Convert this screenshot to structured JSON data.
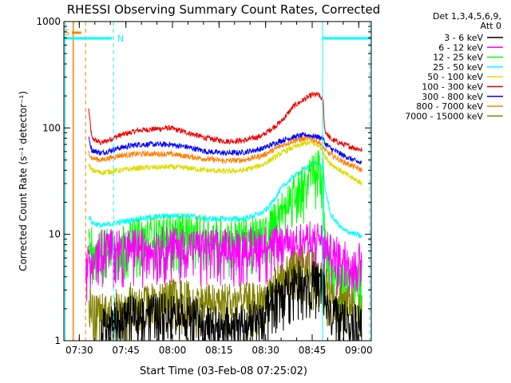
{
  "chart_data": {
    "type": "line",
    "title": "RHESSI Observing Summary Count Rates, Corrected",
    "xlabel": "Start Time (03-Feb-08 07:25:02)",
    "ylabel": "Corrected Count Rate (s⁻¹ detector⁻¹)",
    "yscale": "log",
    "ylim": [
      1,
      1000
    ],
    "xlim_minutes": [
      0,
      99
    ],
    "x_ticks": [
      {
        "label": "07:30",
        "min": 4.97
      },
      {
        "label": "07:45",
        "min": 19.97
      },
      {
        "label": "08:00",
        "min": 34.97
      },
      {
        "label": "08:15",
        "min": 49.97
      },
      {
        "label": "08:30",
        "min": 64.97
      },
      {
        "label": "08:45",
        "min": 79.97
      },
      {
        "label": "09:00",
        "min": 94.97
      }
    ],
    "y_ticks": [
      {
        "label": "1",
        "value": 1
      },
      {
        "label": "10",
        "value": 10
      },
      {
        "label": "100",
        "value": 100
      },
      {
        "label": "1000",
        "value": 1000
      }
    ],
    "legend": {
      "position": "right",
      "header": [
        "Det 1,3,4,5,6,9,",
        "Att 0"
      ],
      "entries": [
        {
          "label": "3 - 6 keV",
          "color": "#000000"
        },
        {
          "label": "6 - 12 keV",
          "color": "#ff00ff"
        },
        {
          "label": "12 - 25 keV",
          "color": "#00ff00"
        },
        {
          "label": "25 - 50 keV",
          "color": "#00ffff"
        },
        {
          "label": "50 - 100 keV",
          "color": "#dddd00"
        },
        {
          "label": "100 - 300 keV",
          "color": "#ee0000"
        },
        {
          "label": "300 - 800 keV",
          "color": "#0000ff"
        },
        {
          "label": "800 - 7000 keV",
          "color": "#ff8000"
        },
        {
          "label": "7000 - 15000 keV",
          "color": "#808000"
        }
      ]
    },
    "flags": {
      "n_label": "N",
      "s_label": "S"
    },
    "series": [
      {
        "color": "#ee0000",
        "x": [
          8,
          9,
          12,
          18,
          24,
          34,
          40,
          46,
          52,
          58,
          64,
          70,
          74,
          78,
          80,
          82,
          83.5,
          84,
          86,
          90,
          96
        ],
        "y": [
          150,
          80,
          72,
          85,
          95,
          100,
          90,
          80,
          75,
          76,
          85,
          115,
          160,
          190,
          205,
          205,
          180,
          95,
          78,
          70,
          62
        ]
      },
      {
        "color": "#0000ff",
        "x": [
          8,
          9,
          12,
          18,
          24,
          34,
          40,
          46,
          52,
          58,
          64,
          70,
          74,
          78,
          80,
          82,
          83.5,
          84,
          86,
          90,
          96
        ],
        "y": [
          80,
          62,
          58,
          65,
          70,
          70,
          66,
          60,
          58,
          59,
          64,
          76,
          82,
          86,
          84,
          82,
          80,
          72,
          64,
          55,
          46
        ]
      },
      {
        "color": "#ff8000",
        "x": [
          8,
          9,
          12,
          18,
          24,
          34,
          40,
          46,
          52,
          58,
          64,
          70,
          74,
          78,
          80,
          82,
          83.5,
          84,
          86,
          90,
          96
        ],
        "y": [
          60,
          52,
          50,
          55,
          57,
          57,
          54,
          51,
          49,
          50,
          55,
          68,
          76,
          79,
          78,
          74,
          68,
          62,
          56,
          48,
          40
        ]
      },
      {
        "color": "#dddd00",
        "x": [
          8,
          9,
          12,
          18,
          24,
          34,
          40,
          46,
          52,
          58,
          64,
          70,
          74,
          78,
          80,
          82,
          83.5,
          84,
          86,
          90,
          96
        ],
        "y": [
          45,
          40,
          38,
          40,
          42,
          43,
          42,
          40,
          39,
          40,
          45,
          58,
          66,
          72,
          72,
          68,
          62,
          54,
          46,
          38,
          30
        ]
      },
      {
        "color": "#00ffff",
        "x": [
          8,
          9,
          12,
          18,
          24,
          34,
          40,
          46,
          52,
          58,
          64,
          66,
          70,
          74,
          78,
          80,
          82,
          83.5,
          84,
          86,
          90,
          96
        ],
        "y": [
          15,
          13,
          12,
          13,
          14,
          15,
          15,
          14,
          14,
          14,
          16,
          18,
          27,
          35,
          42,
          46,
          48,
          40,
          28,
          15,
          11,
          9.5
        ]
      },
      {
        "color": "#00ff00",
        "x": [
          8,
          9,
          12,
          18,
          24,
          34,
          40,
          46,
          52,
          58,
          64,
          66,
          70,
          74,
          78,
          80,
          82,
          83.5,
          84,
          86,
          90,
          96
        ],
        "y": [
          9,
          8.5,
          8,
          9,
          10,
          11,
          11,
          10.5,
          10,
          10,
          10.5,
          12,
          18,
          25,
          34,
          40,
          45,
          38,
          10,
          5,
          4,
          4.2
        ]
      },
      {
        "color": "#ff00ff",
        "x": [
          7,
          8,
          12,
          18,
          24,
          34,
          40,
          46,
          52,
          58,
          64,
          70,
          74,
          78,
          80,
          82,
          83.5,
          84,
          86,
          90,
          96
        ],
        "y": [
          5,
          6,
          8,
          8,
          8,
          8.5,
          8,
          8,
          8,
          8.2,
          8.5,
          9,
          9.5,
          9.5,
          9.5,
          9.5,
          9,
          8,
          7,
          6.5,
          6
        ]
      },
      {
        "color": "#808000",
        "x": [
          8,
          9,
          12,
          16,
          20,
          24,
          30,
          36,
          42,
          48,
          54,
          60,
          64,
          66,
          70,
          74,
          78,
          80,
          82,
          83.5,
          84,
          86,
          90,
          96
        ],
        "y": [
          3,
          2,
          2,
          2.2,
          2.5,
          2.5,
          2.5,
          2.8,
          2.5,
          2.5,
          2.5,
          2.5,
          2.5,
          3,
          4,
          5,
          5.5,
          5,
          4.5,
          4,
          3.5,
          3,
          2.5,
          2
        ]
      },
      {
        "color": "#000000",
        "x": [
          12,
          16,
          20,
          24,
          30,
          36,
          42,
          48,
          54,
          60,
          64,
          66,
          70,
          74,
          78,
          80,
          82,
          83.5,
          84,
          86,
          90,
          96
        ],
        "y": [
          1.5,
          1.6,
          1.8,
          2,
          2,
          2,
          1.8,
          1.5,
          1.5,
          1.6,
          1.8,
          2.5,
          3,
          4,
          4,
          4,
          4,
          3.5,
          3,
          2,
          1.7,
          1.5
        ]
      }
    ]
  }
}
